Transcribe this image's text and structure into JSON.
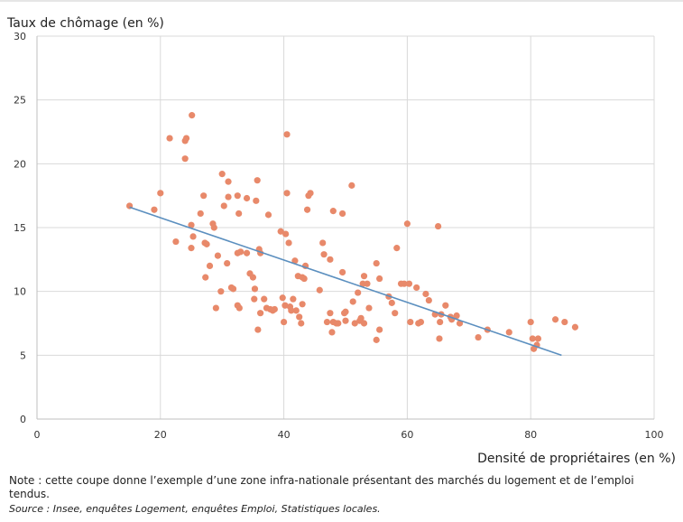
{
  "chart_data": {
    "type": "scatter",
    "ylabel": "Taux de chômage (en %)",
    "xlabel": "Densité de propriétaires (en %)",
    "xlim": [
      0,
      100
    ],
    "ylim": [
      0,
      30
    ],
    "xticks": [
      0,
      20,
      40,
      60,
      80,
      100
    ],
    "yticks": [
      0,
      5,
      10,
      15,
      20,
      25,
      30
    ],
    "grid": true,
    "point_color": "#e8896a",
    "line_color": "#5b8fbf",
    "trendline": {
      "x": [
        15,
        85
      ],
      "y": [
        16.6,
        5.0
      ]
    },
    "points": [
      [
        15,
        16.7
      ],
      [
        19,
        16.4
      ],
      [
        20,
        17.7
      ],
      [
        21.5,
        22.0
      ],
      [
        22.5,
        13.9
      ],
      [
        24,
        21.8
      ],
      [
        24.2,
        22.0
      ],
      [
        24,
        20.4
      ],
      [
        25.1,
        23.8
      ],
      [
        25,
        15.2
      ],
      [
        25.3,
        14.3
      ],
      [
        25,
        13.4
      ],
      [
        26.5,
        16.1
      ],
      [
        27,
        17.5
      ],
      [
        27.2,
        13.8
      ],
      [
        27.5,
        13.7
      ],
      [
        27.3,
        11.1
      ],
      [
        28,
        12.0
      ],
      [
        28.5,
        15.3
      ],
      [
        28.7,
        15.0
      ],
      [
        29,
        8.7
      ],
      [
        29.3,
        12.8
      ],
      [
        30,
        19.2
      ],
      [
        30.3,
        16.7
      ],
      [
        29.8,
        10.0
      ],
      [
        30.8,
        12.2
      ],
      [
        31,
        17.4
      ],
      [
        31,
        18.6
      ],
      [
        31.5,
        10.3
      ],
      [
        31.8,
        10.2
      ],
      [
        32.5,
        17.5
      ],
      [
        32.5,
        13.0
      ],
      [
        32.7,
        16.1
      ],
      [
        32.8,
        8.7
      ],
      [
        32.5,
        8.9
      ],
      [
        33,
        13.1
      ],
      [
        34,
        17.3
      ],
      [
        34,
        13.0
      ],
      [
        34.5,
        11.4
      ],
      [
        35,
        11.1
      ],
      [
        35.2,
        9.4
      ],
      [
        35.3,
        10.2
      ],
      [
        35.5,
        17.1
      ],
      [
        35.7,
        18.7
      ],
      [
        35.8,
        7.0
      ],
      [
        36,
        13.3
      ],
      [
        36.2,
        13.0
      ],
      [
        36.2,
        8.3
      ],
      [
        36.8,
        9.4
      ],
      [
        37.2,
        8.7
      ],
      [
        37.5,
        16.0
      ],
      [
        37.8,
        8.6
      ],
      [
        38.2,
        8.5
      ],
      [
        38.5,
        8.6
      ],
      [
        39.5,
        14.7
      ],
      [
        39.8,
        9.5
      ],
      [
        40,
        7.6
      ],
      [
        40.2,
        8.9
      ],
      [
        40.3,
        14.5
      ],
      [
        40.5,
        17.7
      ],
      [
        40.5,
        22.3
      ],
      [
        40.8,
        13.8
      ],
      [
        41,
        8.8
      ],
      [
        41.2,
        8.5
      ],
      [
        41.5,
        9.4
      ],
      [
        41.8,
        12.4
      ],
      [
        42,
        8.5
      ],
      [
        42.3,
        11.2
      ],
      [
        42.5,
        8.0
      ],
      [
        42.8,
        7.5
      ],
      [
        43,
        9.0
      ],
      [
        43,
        11.1
      ],
      [
        43.3,
        11.0
      ],
      [
        43.5,
        12.0
      ],
      [
        43.8,
        16.4
      ],
      [
        44,
        17.5
      ],
      [
        44.3,
        17.7
      ],
      [
        45.8,
        10.1
      ],
      [
        46.3,
        13.8
      ],
      [
        46.5,
        12.9
      ],
      [
        47.5,
        12.5
      ],
      [
        47,
        7.6
      ],
      [
        47.5,
        8.3
      ],
      [
        47.8,
        6.8
      ],
      [
        48,
        16.3
      ],
      [
        48,
        7.6
      ],
      [
        48.5,
        7.5
      ],
      [
        48.8,
        7.5
      ],
      [
        49.5,
        16.1
      ],
      [
        49.5,
        11.5
      ],
      [
        49.8,
        8.3
      ],
      [
        50,
        8.4
      ],
      [
        50,
        7.7
      ],
      [
        51,
        18.3
      ],
      [
        51.2,
        9.2
      ],
      [
        51.5,
        7.5
      ],
      [
        52,
        9.9
      ],
      [
        52.3,
        7.7
      ],
      [
        52.5,
        7.9
      ],
      [
        52.8,
        10.6
      ],
      [
        53,
        11.2
      ],
      [
        53,
        7.5
      ],
      [
        53.5,
        10.6
      ],
      [
        53.8,
        8.7
      ],
      [
        55,
        6.2
      ],
      [
        55,
        12.2
      ],
      [
        55.5,
        11.0
      ],
      [
        55.5,
        7.0
      ],
      [
        57,
        9.6
      ],
      [
        57.5,
        9.1
      ],
      [
        58,
        8.3
      ],
      [
        58.3,
        13.4
      ],
      [
        59,
        10.6
      ],
      [
        59.5,
        10.6
      ],
      [
        60,
        15.3
      ],
      [
        60.3,
        10.6
      ],
      [
        60.5,
        7.6
      ],
      [
        61.5,
        10.3
      ],
      [
        61.8,
        7.5
      ],
      [
        62.2,
        7.6
      ],
      [
        63,
        9.8
      ],
      [
        63.5,
        9.3
      ],
      [
        64.5,
        8.2
      ],
      [
        65,
        15.1
      ],
      [
        65.3,
        7.6
      ],
      [
        65.2,
        6.3
      ],
      [
        65.5,
        8.2
      ],
      [
        66.2,
        8.9
      ],
      [
        67,
        8.0
      ],
      [
        67.2,
        7.8
      ],
      [
        68,
        8.1
      ],
      [
        68.5,
        7.5
      ],
      [
        71.5,
        6.4
      ],
      [
        73,
        7.0
      ],
      [
        76.5,
        6.8
      ],
      [
        80,
        7.6
      ],
      [
        80.3,
        6.3
      ],
      [
        80.5,
        5.5
      ],
      [
        81,
        5.8
      ],
      [
        81.2,
        6.3
      ],
      [
        84,
        7.8
      ],
      [
        85.5,
        7.6
      ],
      [
        87.2,
        7.2
      ]
    ]
  },
  "footer": {
    "note": "Note : cette coupe donne l’exemple d’une zone infra-nationale présentant des marchés du logement et de l’emploi tendus.",
    "source": "Source : Insee, enquêtes Logement, enquêtes Emploi, Statistiques locales."
  }
}
